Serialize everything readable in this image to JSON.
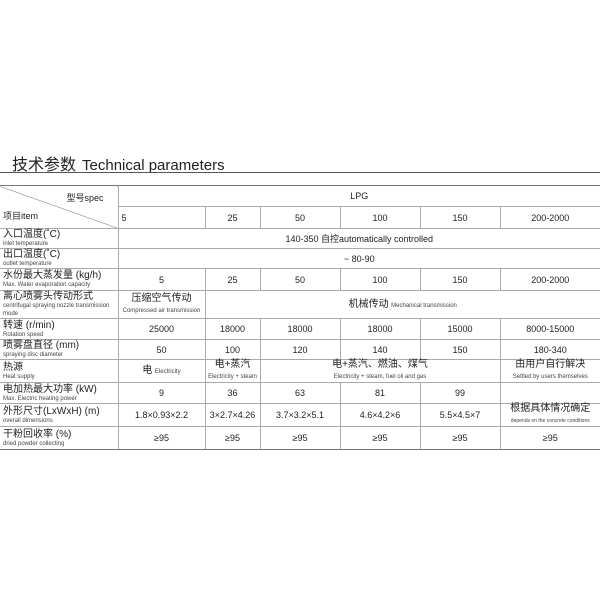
{
  "title": {
    "zh": "技术参数",
    "en": "Technical parameters"
  },
  "header": {
    "spec": "型号spec",
    "item": "项目item",
    "model": "LPG",
    "cols": [
      "5",
      "25",
      "50",
      "100",
      "150",
      "200-2000"
    ]
  },
  "rows": {
    "inlet": {
      "zh": "入口温度(˚C)",
      "en": "inlet temperature",
      "value": "140-350 自控automatically controlled"
    },
    "outlet": {
      "zh": "出口温度(˚C)",
      "en": "outlet temperature",
      "value": "~ 80-90"
    },
    "water": {
      "zh": "水份最大蒸发量 (kg/h)",
      "en": "Max. Water evaporation capacity",
      "values": [
        "5",
        "25",
        "50",
        "100",
        "150",
        "200-2000"
      ]
    },
    "nozzle": {
      "zh": "离心喷雾头传动形式",
      "en": "centrifugal spraying nozzle transmission mode",
      "v1_zh": "压缩空气传动",
      "v1_en": "Compressed air transmission",
      "v2_zh": "机械传动",
      "v2_en": "Mechanical transmission"
    },
    "speed": {
      "zh": "转速 (r/min)",
      "en": "Rotation speed",
      "values": [
        "25000",
        "18000",
        "18000",
        "18000",
        "15000",
        "8000-15000"
      ]
    },
    "disc": {
      "zh": "喷雾盘直径 (mm)",
      "en": "spraying disc diameter",
      "values": [
        "50",
        "100",
        "120",
        "140",
        "150",
        "180-340"
      ]
    },
    "heat": {
      "zh": "热源",
      "en": "Heat supply",
      "v1_zh": "电",
      "v1_en": "Electricity",
      "v2_zh": "电+蒸汽",
      "v2_en": "Electricity + steam",
      "v3_zh": "电+蒸汽、燃油、煤气",
      "v3_en": "Electricity + steam, fuel oil and gas",
      "v4_zh": "由用户自行解决",
      "v4_en": "Settled by users themselves"
    },
    "power": {
      "zh": "电加热最大功率 (kW)",
      "en": "Max. Electric heating power",
      "values": [
        "9",
        "36",
        "63",
        "81",
        "99",
        ""
      ]
    },
    "dims": {
      "zh": "外形尺寸(LxWxH) (m)",
      "en": "overall dimensions",
      "values": [
        "1.8×0.93×2.2",
        "3×2.7×4.26",
        "3.7×3.2×5.1",
        "4.6×4.2×6",
        "5.5×4.5×7"
      ],
      "last_zh": "根据具体情况确定",
      "last_en": "depends on the concrete conditions"
    },
    "dried": {
      "zh": "干粉回收率 (%)",
      "en": "dried powder collecting",
      "values": [
        "≥95",
        "≥95",
        "≥95",
        "≥95",
        "≥95",
        "≥95"
      ]
    }
  }
}
